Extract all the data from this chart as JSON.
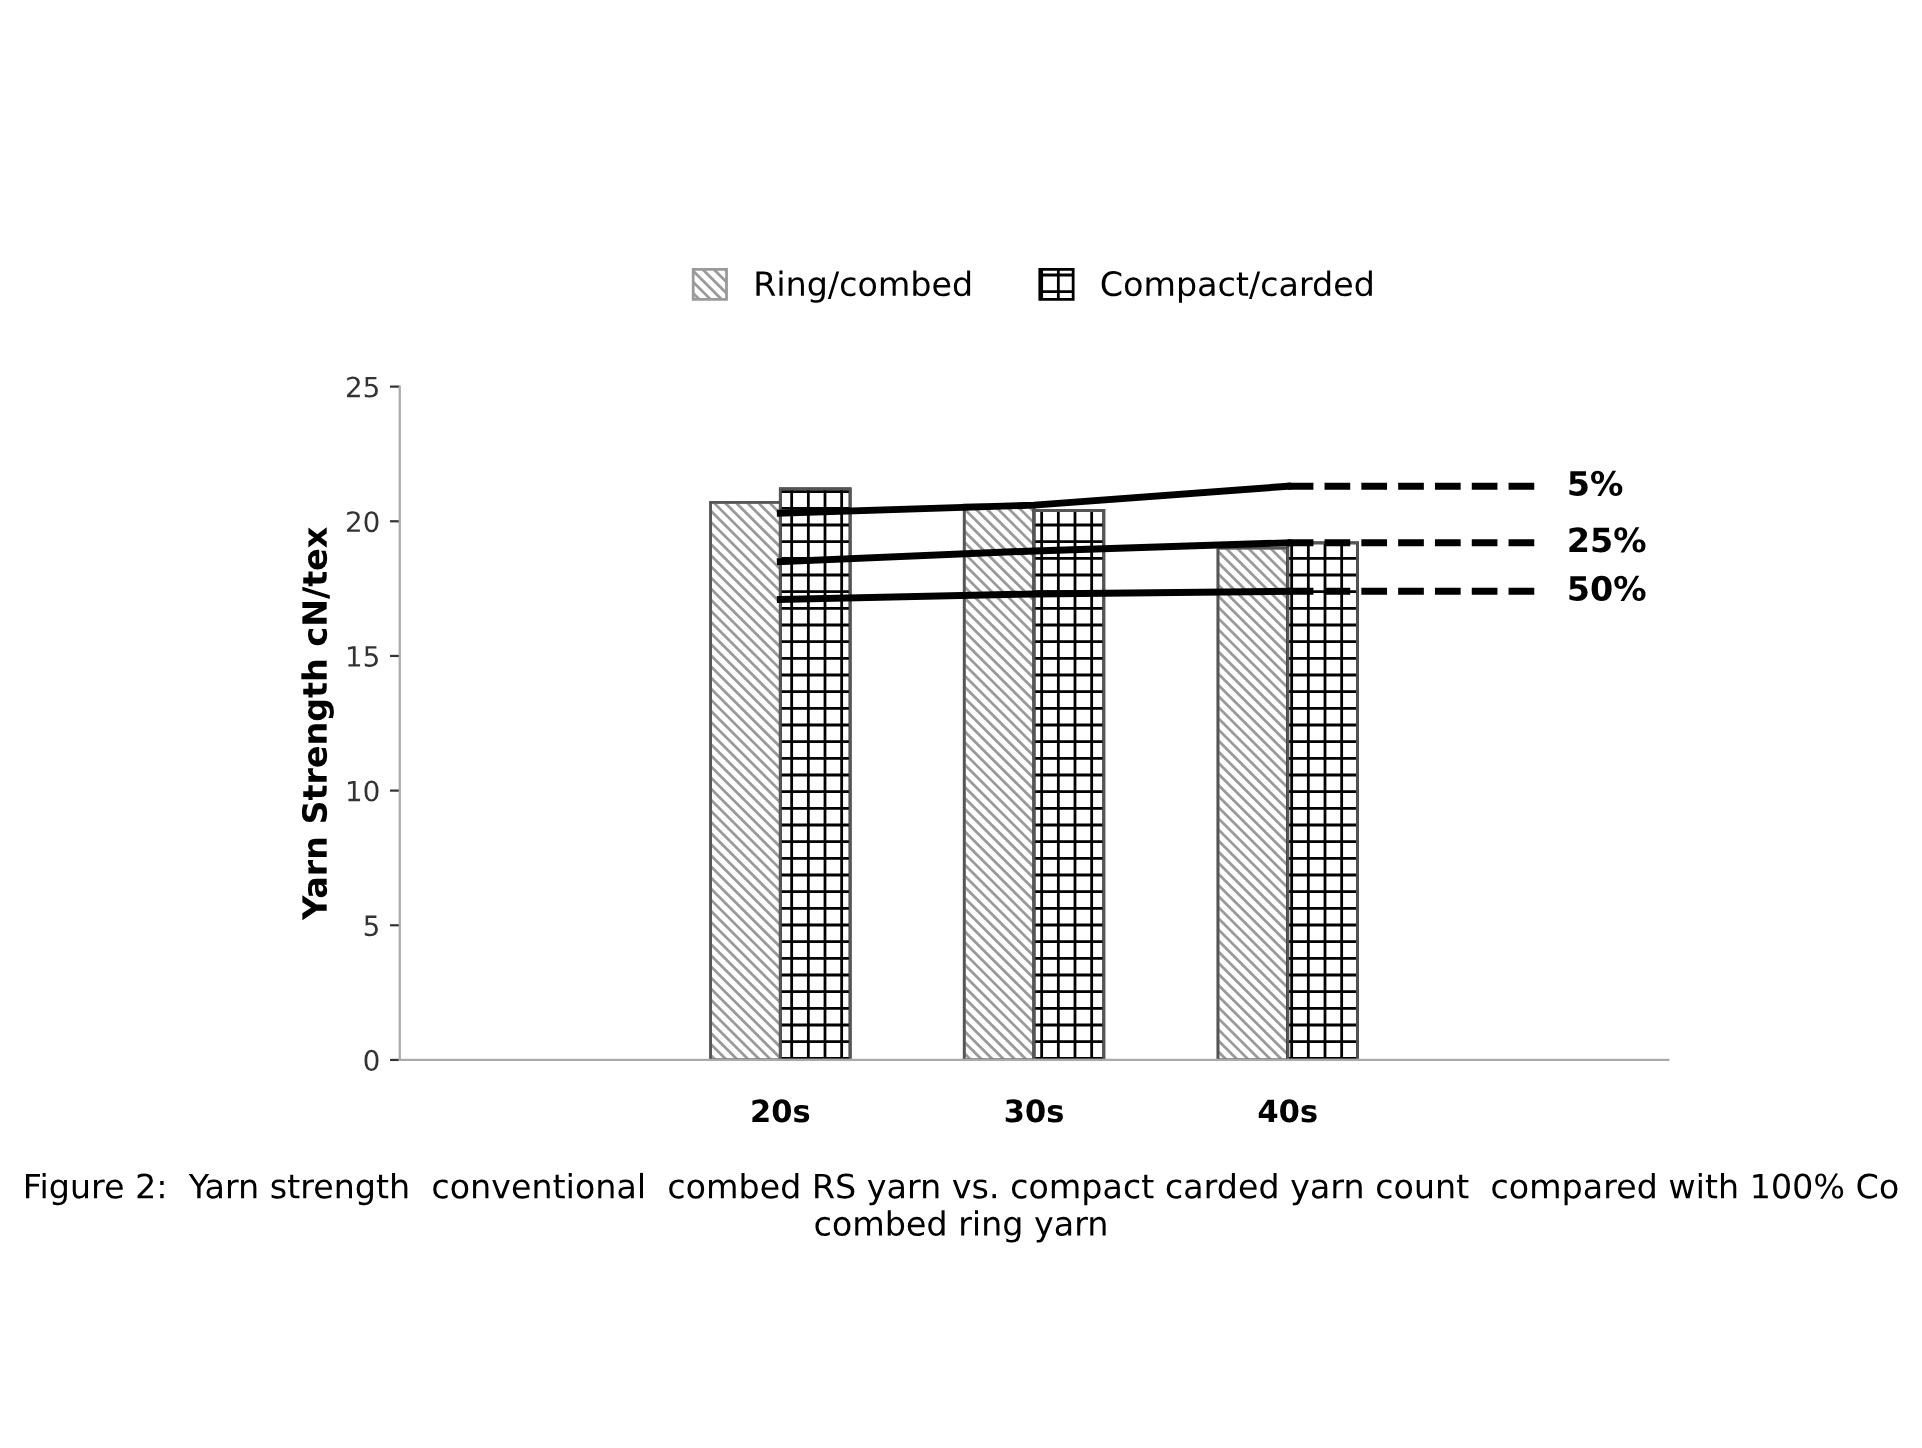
{
  "chart_data": {
    "type": "bar",
    "ylabel": "Yarn Strength cN/tex",
    "categories": [
      null,
      "20s",
      "30s",
      "40s",
      null
    ],
    "series": [
      {
        "name": "Ring/combed",
        "color": "#9a9a9a",
        "values": [
          null,
          20.7,
          20.6,
          19.0,
          null
        ]
      },
      {
        "name": "Compact/carded",
        "color": "#000000",
        "values": [
          null,
          21.2,
          20.4,
          19.2,
          null
        ]
      },
      {
        "type": "line",
        "color": "#000000",
        "line_style": "solid",
        "values": [
          null,
          20.3,
          20.6,
          21.3,
          null
        ]
      },
      {
        "type": "line",
        "color": "#000000",
        "line_style": "dashed",
        "name": "5%",
        "values": [
          null,
          null,
          null,
          21.3,
          21.3
        ]
      },
      {
        "type": "line",
        "color": "#000000",
        "line_style": "solid",
        "values": [
          null,
          18.5,
          18.9,
          19.2,
          null
        ]
      },
      {
        "type": "line",
        "color": "#000000",
        "line_style": "dashed",
        "name": "25%",
        "values": [
          null,
          null,
          null,
          19.2,
          19.2
        ]
      },
      {
        "type": "line",
        "color": "#000000",
        "line_style": "solid",
        "values": [
          null,
          17.1,
          17.3,
          17.4,
          null
        ]
      },
      {
        "type": "line",
        "color": "#000000",
        "line_style": "dashed",
        "name": "50%",
        "values": [
          null,
          null,
          null,
          17.4,
          17.4
        ]
      }
    ],
    "ylim": [
      0,
      25
    ],
    "yticks": [
      0,
      5,
      10,
      15,
      20,
      25
    ],
    "grid": false,
    "legend": "top",
    "marker": "none",
    "annotations": [
      "Figure 2:  Yarn strength  conventional  combed RS yarn vs. compact carded yarn count  compared with 100% Co combed ring yarn"
    ]
  }
}
